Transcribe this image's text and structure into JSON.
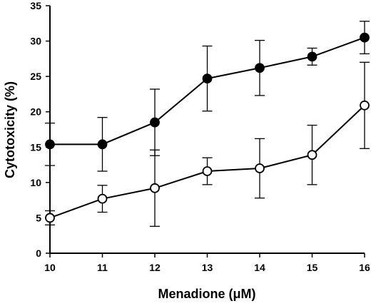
{
  "chart_data": {
    "type": "line",
    "title": "",
    "xlabel": "Menadione (μM)",
    "ylabel": "Cytotoxicity (%)",
    "x": [
      10,
      11,
      12,
      13,
      14,
      15,
      16
    ],
    "xticks": [
      "10",
      "11",
      "12",
      "13",
      "14",
      "15",
      "16"
    ],
    "xlim": [
      10,
      16
    ],
    "ylim": [
      0,
      35
    ],
    "yticks": [
      "0",
      "5",
      "10",
      "15",
      "20",
      "25",
      "30",
      "35"
    ],
    "grid": false,
    "legend": "none",
    "series": [
      {
        "marker": "filled-circle",
        "values": [
          15.4,
          15.4,
          18.5,
          24.7,
          26.2,
          27.8,
          30.5
        ],
        "error": [
          3.0,
          3.8,
          4.7,
          4.6,
          3.9,
          1.2,
          2.3
        ]
      },
      {
        "marker": "open-circle",
        "values": [
          5.0,
          7.7,
          9.2,
          11.6,
          12.0,
          13.9,
          20.9
        ],
        "error": [
          1.0,
          1.9,
          5.4,
          1.9,
          4.2,
          4.2,
          6.1
        ]
      }
    ]
  }
}
